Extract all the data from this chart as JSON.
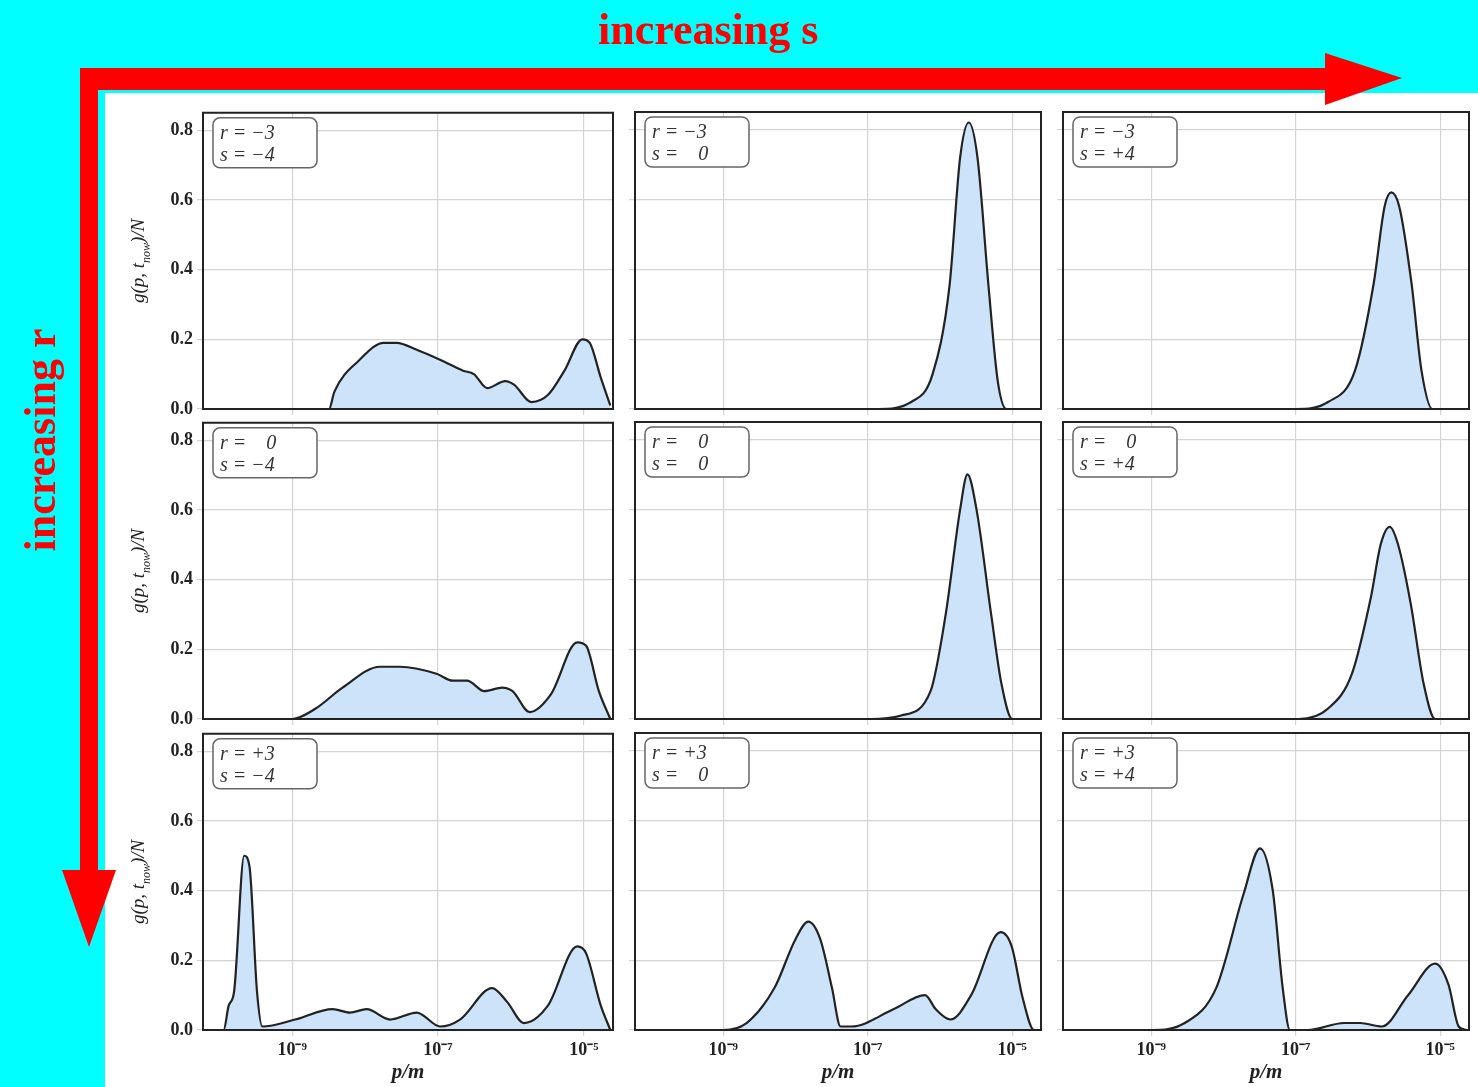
{
  "chart_data": [
    {
      "type": "area",
      "color": "#cce3f9",
      "ylabel": "g(p, t$_{now}$)/N",
      "tick_labels": "y",
      "grid": true,
      "log": "x",
      "xlim": [
        6e-11,
        2.5e-05
      ],
      "xticks": [
        {
          "value": 1e-09,
          "label": null
        },
        {
          "value": 1e-07,
          "label": null
        },
        {
          "value": 1e-05,
          "label": null
        }
      ],
      "ylim": [
        0,
        0.85
      ],
      "yticks": [
        {
          "value": 0,
          "label": "0.0"
        },
        0.2,
        0.4,
        0.6,
        0.8
      ],
      "annotations": [
        "r = −3",
        "s = −4",
        "increasing s",
        "increasing r"
      ],
      "x": [
        7e-11,
        3.2e-09,
        3.8e-09,
        8.3e-09,
        1.8e-08,
        2.7e-08,
        5.1e-08,
        1.1e-07,
        2.2e-07,
        3.1e-07,
        4.7e-07,
        8.3e-07,
        1.1e-06,
        1.9e-06,
        3.2e-06,
        5.4e-06,
        9.5e-06,
        1.2e-05,
        1.7e-05,
        2.3e-05
      ],
      "values": [
        0,
        0,
        0.05,
        0.14,
        0.19,
        0.19,
        0.17,
        0.14,
        0.11,
        0.1,
        0.06,
        0.08,
        0.07,
        0.02,
        0.04,
        0.11,
        0.2,
        0.19,
        0.09,
        0.01
      ]
    },
    {
      "type": "area",
      "color": "#cce3f9",
      "tick_labels": false,
      "grid": true,
      "log": "x",
      "xlim": [
        6e-11,
        2.5e-05
      ],
      "xticks": [
        {
          "value": 1e-09,
          "label": null
        },
        {
          "value": 1e-07,
          "label": null
        },
        {
          "value": 1e-05,
          "label": null
        }
      ],
      "ylim": [
        0,
        0.85
      ],
      "yticks": [
        {
          "value": 0,
          "label": null
        },
        {
          "value": 0.2,
          "label": null
        },
        {
          "value": 0.4,
          "label": null
        },
        {
          "value": 0.6,
          "label": null
        },
        {
          "value": 0.8,
          "label": null
        }
      ],
      "annotations": [
        "r = −3",
        "s =    0"
      ],
      "x": [
        7e-11,
        1.4e-07,
        4e-07,
        7.9e-07,
        1.35e-06,
        1.9e-06,
        2.5e-06,
        3.3e-06,
        4.7e-06,
        6.3e-06,
        8.3e-06,
        2.3e-05
      ],
      "values": [
        0,
        0,
        0.02,
        0.1,
        0.35,
        0.72,
        0.82,
        0.72,
        0.35,
        0.08,
        0,
        0
      ]
    },
    {
      "type": "area",
      "color": "#cce3f9",
      "tick_labels": false,
      "grid": true,
      "log": "x",
      "xlim": [
        6e-11,
        2.5e-05
      ],
      "xticks": [
        {
          "value": 1e-09,
          "label": null
        },
        {
          "value": 1e-07,
          "label": null
        },
        {
          "value": 1e-05,
          "label": null
        }
      ],
      "ylim": [
        0,
        0.85
      ],
      "yticks": [
        {
          "value": 0,
          "label": null
        },
        {
          "value": 0.2,
          "label": null
        },
        {
          "value": 0.4,
          "label": null
        },
        {
          "value": 0.6,
          "label": null
        },
        {
          "value": 0.8,
          "label": null
        }
      ],
      "annotations": [
        "r = −3",
        "s = +4"
      ],
      "x": [
        7e-11,
        1e-07,
        2.8e-07,
        6.6e-07,
        1.2e-06,
        1.7e-06,
        2.1e-06,
        2.7e-06,
        4e-06,
        5.5e-06,
        7.8e-06,
        2.3e-05
      ],
      "values": [
        0,
        0,
        0.02,
        0.11,
        0.36,
        0.58,
        0.62,
        0.58,
        0.36,
        0.11,
        0,
        0
      ]
    },
    {
      "type": "area",
      "color": "#cce3f9",
      "ylabel": "g(p, t$_{now}$)/N",
      "tick_labels": "y",
      "grid": true,
      "log": "x",
      "xlim": [
        6e-11,
        2.5e-05
      ],
      "xticks": [
        {
          "value": 1e-09,
          "label": null
        },
        {
          "value": 1e-07,
          "label": null
        },
        {
          "value": 1e-05,
          "label": null
        }
      ],
      "ylim": [
        0,
        0.85
      ],
      "yticks": [
        {
          "value": 0,
          "label": "0.0"
        },
        0.2,
        0.4,
        0.6,
        0.8
      ],
      "annotations": [
        "r =    0",
        "s = −4"
      ],
      "x": [
        7e-11,
        1e-09,
        2.1e-09,
        4.9e-09,
        1.6e-08,
        3e-08,
        9.5e-08,
        1.6e-07,
        2.5e-07,
        4.3e-07,
        7.6e-07,
        1.05e-06,
        1.8e-06,
        3.5e-06,
        8.1e-06,
        1.07e-05,
        1.6e-05,
        2.3e-05
      ],
      "values": [
        0,
        0,
        0.03,
        0.09,
        0.15,
        0.15,
        0.13,
        0.11,
        0.11,
        0.08,
        0.09,
        0.08,
        0.02,
        0.07,
        0.22,
        0.21,
        0.08,
        0
      ]
    },
    {
      "type": "area",
      "color": "#cce3f9",
      "tick_labels": false,
      "grid": true,
      "log": "x",
      "xlim": [
        6e-11,
        2.5e-05
      ],
      "xticks": [
        {
          "value": 1e-09,
          "label": null
        },
        {
          "value": 1e-07,
          "label": null
        },
        {
          "value": 1e-05,
          "label": null
        }
      ],
      "ylim": [
        0,
        0.85
      ],
      "yticks": [
        {
          "value": 0,
          "label": null
        },
        {
          "value": 0.2,
          "label": null
        },
        {
          "value": 0.4,
          "label": null
        },
        {
          "value": 0.6,
          "label": null
        },
        {
          "value": 0.8,
          "label": null
        }
      ],
      "annotations": [
        "r =    0",
        "s =    0"
      ],
      "x": [
        7e-11,
        1.1e-07,
        2.9e-07,
        7.4e-07,
        1.2e-06,
        1.9e-06,
        2.4e-06,
        3.2e-06,
        5.1e-06,
        7.1e-06,
        1e-05,
        2.3e-05
      ],
      "values": [
        0,
        0,
        0.01,
        0.08,
        0.3,
        0.6,
        0.7,
        0.6,
        0.3,
        0.1,
        0,
        0
      ]
    },
    {
      "type": "area",
      "color": "#cce3f9",
      "tick_labels": false,
      "grid": true,
      "log": "x",
      "xlim": [
        6e-11,
        2.5e-05
      ],
      "xticks": [
        {
          "value": 1e-09,
          "label": null
        },
        {
          "value": 1e-07,
          "label": null
        },
        {
          "value": 1e-05,
          "label": null
        }
      ],
      "ylim": [
        0,
        0.85
      ],
      "yticks": [
        {
          "value": 0,
          "label": null
        },
        {
          "value": 0.2,
          "label": null
        },
        {
          "value": 0.4,
          "label": null
        },
        {
          "value": 0.6,
          "label": null
        },
        {
          "value": 0.8,
          "label": null
        }
      ],
      "annotations": [
        "r =    0",
        "s = +4"
      ],
      "x": [
        7e-11,
        1.1e-07,
        2.8e-07,
        6e-07,
        1.1e-06,
        1.5e-06,
        2e-06,
        2.6e-06,
        3.9e-06,
        5.9e-06,
        8.5e-06,
        2.3e-05
      ],
      "values": [
        0,
        0,
        0.03,
        0.13,
        0.35,
        0.5,
        0.55,
        0.5,
        0.33,
        0.1,
        0,
        0
      ]
    },
    {
      "type": "area",
      "color": "#cce3f9",
      "ylabel": "g(p, t$_{now}$)/N",
      "xlabel": "p/m",
      "grid": true,
      "log": "x",
      "xlim": [
        6e-11,
        2.5e-05
      ],
      "xticks": [
        {
          "value": 1e-09,
          "label": "10⁻⁹"
        },
        {
          "value": 1e-07,
          "label": "10⁻⁷"
        },
        {
          "value": 1e-05,
          "label": "10⁻⁵"
        }
      ],
      "ylim": [
        0,
        0.85
      ],
      "yticks": [
        {
          "value": 0,
          "label": "0.0"
        },
        0.2,
        0.4,
        0.6,
        0.8
      ],
      "annotations": [
        "r = +3",
        "s = −4"
      ],
      "x": [
        7e-11,
        1.15e-10,
        1.35e-10,
        1.6e-10,
        2.2e-10,
        2.6e-10,
        3.3e-10,
        3.9e-10,
        1.1e-09,
        3.6e-09,
        6.2e-09,
        1.05e-08,
        2.2e-08,
        5.1e-08,
        1.07e-07,
        2e-07,
        5.5e-07,
        8.9e-07,
        1.5e-06,
        3.2e-06,
        8.1e-06,
        1.07e-05,
        1.7e-05,
        2.3e-05
      ],
      "values": [
        0,
        0,
        0.07,
        0.11,
        0.5,
        0.47,
        0.11,
        0.01,
        0.03,
        0.06,
        0.05,
        0.06,
        0.03,
        0.05,
        0.01,
        0.03,
        0.12,
        0.08,
        0.02,
        0.07,
        0.24,
        0.22,
        0.07,
        0
      ]
    },
    {
      "type": "area",
      "color": "#cce3f9",
      "xlabel": "p/m",
      "tick_labels": "x",
      "grid": true,
      "log": "x",
      "xlim": [
        6e-11,
        2.5e-05
      ],
      "xticks": [
        {
          "value": 1e-09,
          "label": "10⁻⁹"
        },
        {
          "value": 1e-07,
          "label": "10⁻⁷"
        },
        {
          "value": 1e-05,
          "label": "10⁻⁵"
        }
      ],
      "ylim": [
        0,
        0.85
      ],
      "yticks": [
        {
          "value": 0,
          "label": null
        },
        {
          "value": 0.2,
          "label": null
        },
        {
          "value": 0.4,
          "label": null
        },
        {
          "value": 0.6,
          "label": null
        },
        {
          "value": 0.8,
          "label": null
        }
      ],
      "annotations": [
        "r = +3",
        "s =    0"
      ],
      "x": [
        7e-11,
        1e-09,
        2.1e-09,
        5.1e-09,
        1e-08,
        1.5e-08,
        2.2e-08,
        3.2e-08,
        4.2e-08,
        5.9e-08,
        2.3e-07,
        6.2e-07,
        8.7e-07,
        1.4e-06,
        2.7e-06,
        6.9e-06,
        9.8e-06,
        1.4e-05,
        2e-05,
        2.3e-05
      ],
      "values": [
        0,
        0,
        0.02,
        0.12,
        0.26,
        0.31,
        0.26,
        0.12,
        0.01,
        0.01,
        0.06,
        0.1,
        0.06,
        0.03,
        0.1,
        0.28,
        0.24,
        0.09,
        0,
        0
      ]
    },
    {
      "type": "area",
      "color": "#cce3f9",
      "xlabel": "p/m",
      "tick_labels": "x",
      "grid": true,
      "log": "x",
      "xlim": [
        6e-11,
        2.5e-05
      ],
      "xticks": [
        {
          "value": 1e-09,
          "label": "10⁻⁹"
        },
        {
          "value": 1e-07,
          "label": "10⁻⁷"
        },
        {
          "value": 1e-05,
          "label": "10⁻⁵"
        }
      ],
      "ylim": [
        0,
        0.85
      ],
      "yticks": [
        {
          "value": 0,
          "label": null
        },
        {
          "value": 0.2,
          "label": null
        },
        {
          "value": 0.4,
          "label": null
        },
        {
          "value": 0.6,
          "label": null
        },
        {
          "value": 0.8,
          "label": null
        }
      ],
      "annotations": [
        "r = +3",
        "s = +4"
      ],
      "x": [
        7e-11,
        1e-09,
        2.9e-09,
        7.9e-09,
        1.9e-08,
        3.2e-08,
        4.8e-08,
        6.6e-08,
        8.3e-08,
        1.45e-07,
        4.7e-07,
        7.8e-07,
        1.55e-06,
        3.6e-06,
        8.5e-06,
        1.3e-05,
        1.8e-05,
        2.3e-05
      ],
      "values": [
        0,
        0,
        0.02,
        0.12,
        0.39,
        0.52,
        0.4,
        0.12,
        0,
        0,
        0.02,
        0.02,
        0.01,
        0.1,
        0.19,
        0.13,
        0.01,
        0
      ]
    }
  ]
}
